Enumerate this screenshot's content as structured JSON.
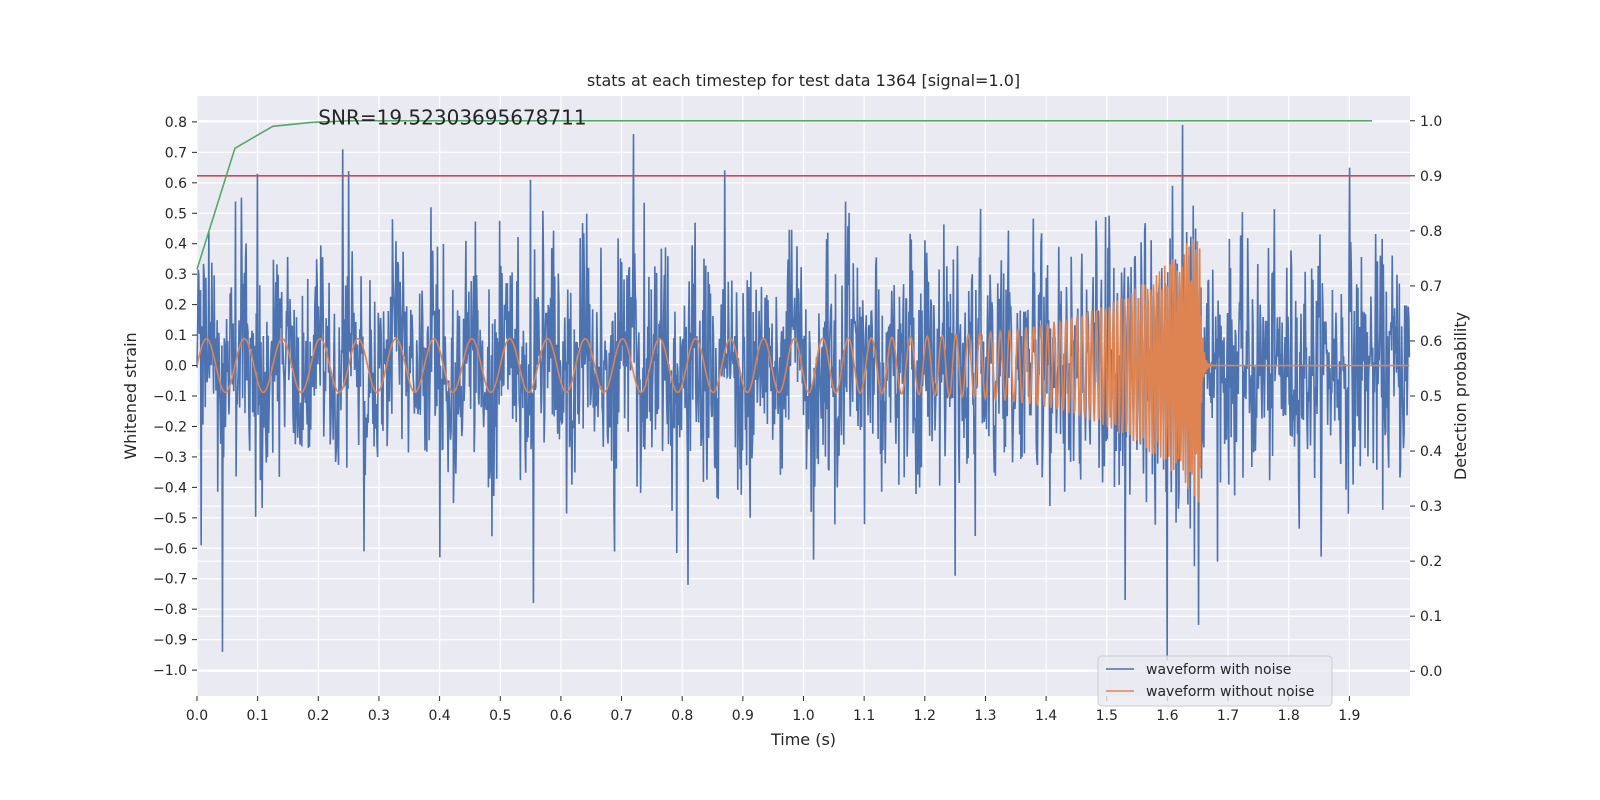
{
  "chart_data": {
    "type": "line",
    "title": "stats at each timestep for test data 1364 [signal=1.0]",
    "xlabel": "Time (s)",
    "ylabel": "Whitened strain",
    "y2label": "Detection probability",
    "xlim": [
      0.0,
      2.0
    ],
    "ylim": [
      -1.085,
      0.885
    ],
    "y2lim": [
      -0.045,
      1.045
    ],
    "xticks": [
      "0.0",
      "0.1",
      "0.2",
      "0.3",
      "0.4",
      "0.5",
      "0.6",
      "0.7",
      "0.8",
      "0.9",
      "1.0",
      "1.1",
      "1.2",
      "1.3",
      "1.4",
      "1.5",
      "1.6",
      "1.7",
      "1.8",
      "1.9"
    ],
    "yticks": [
      "0.8",
      "0.7",
      "0.6",
      "0.5",
      "0.4",
      "0.3",
      "0.2",
      "0.1",
      "0.0",
      "−0.1",
      "−0.2",
      "−0.3",
      "−0.4",
      "−0.5",
      "−0.6",
      "−0.7",
      "−0.8",
      "−0.9",
      "−1.0"
    ],
    "y2ticks": [
      "1.0",
      "0.9",
      "0.8",
      "0.7",
      "0.6",
      "0.5",
      "0.4",
      "0.3",
      "0.2",
      "0.1",
      "0.0"
    ],
    "annotation": "SNR=19.52303695678711",
    "annotation_at": {
      "x": 0.2,
      "y": 0.815
    },
    "legend_position": "lower-right",
    "colors": {
      "noisy": "#4c72b0",
      "clean": "#dd8452",
      "probability": "#55a868",
      "threshold": "#c44e52",
      "plot_bg": "#eaeaf2",
      "grid": "#ffffff"
    },
    "series": [
      {
        "name": "waveform with noise",
        "axis": "left",
        "description": "dense noisy signal, approx. zero mean, std ~0.2, range about -0.97 to 0.79",
        "peaks": [
          {
            "x": 0.007,
            "y": -0.59
          },
          {
            "x": 0.042,
            "y": -0.94
          },
          {
            "x": 0.1,
            "y": 0.63
          },
          {
            "x": 0.24,
            "y": 0.71
          },
          {
            "x": 0.275,
            "y": -0.61
          },
          {
            "x": 0.4,
            "y": -0.63
          },
          {
            "x": 0.55,
            "y": 0.61
          },
          {
            "x": 0.555,
            "y": -0.78
          },
          {
            "x": 0.72,
            "y": 0.76
          },
          {
            "x": 0.81,
            "y": -0.72
          },
          {
            "x": 1.25,
            "y": -0.69
          },
          {
            "x": 1.53,
            "y": -0.77
          },
          {
            "x": 1.6,
            "y": -0.97
          },
          {
            "x": 1.625,
            "y": 0.79
          },
          {
            "x": 1.9,
            "y": 0.65
          }
        ]
      },
      {
        "name": "waveform without noise",
        "axis": "left",
        "description": "chirp: amplitude grows from ~0.09 to ~0.46 at merger near t=1.65 s, then ringdown to 0",
        "chirp": {
          "f0": 16,
          "f1": 300,
          "tc": 1.655,
          "a0": 0.088,
          "a_max": 0.46
        }
      },
      {
        "name": "detection probability",
        "axis": "right",
        "x": [
          0.0,
          0.0625,
          0.125,
          0.1875,
          0.25,
          0.5,
          1.0,
          1.5,
          1.9375
        ],
        "values": [
          0.73,
          0.95,
          0.99,
          0.997,
          1.0,
          1.0,
          1.0,
          1.0,
          1.0
        ]
      },
      {
        "name": "threshold",
        "axis": "right",
        "x": [
          0.0,
          2.0
        ],
        "values": [
          0.9,
          0.9
        ]
      }
    ],
    "legend": [
      "waveform with noise",
      "waveform without noise"
    ]
  }
}
